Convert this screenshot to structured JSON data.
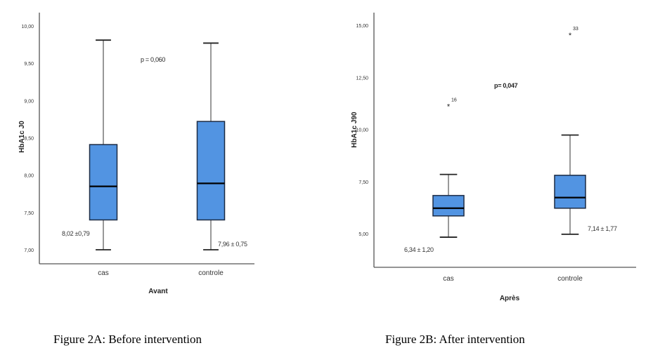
{
  "chart_data": [
    {
      "type": "boxplot",
      "caption": "Figure 2A: Before intervention",
      "xlabel": "Avant",
      "ylabel": "HbA1c J0",
      "ylim": [
        6.8,
        10.2
      ],
      "yticks": [
        "7,00",
        "7,50",
        "8,00",
        "8,50",
        "9,00",
        "9,50",
        "10,00"
      ],
      "ytick_values": [
        7.0,
        7.5,
        8.0,
        8.5,
        9.0,
        9.5,
        10.0
      ],
      "categories": [
        "cas",
        "controle"
      ],
      "box_color": "#5294e2",
      "boxes": [
        {
          "category": "cas",
          "min": 7.0,
          "q1": 7.4,
          "median": 7.85,
          "q3": 8.41,
          "max": 9.81,
          "outliers": [],
          "annotation": "8,02 ±0,79"
        },
        {
          "category": "controle",
          "min": 7.0,
          "q1": 7.4,
          "median": 7.89,
          "q3": 8.72,
          "max": 9.77,
          "outliers": [],
          "annotation": "7,96 ± 0,75"
        }
      ],
      "p_value_label": "p = 0,060",
      "grid": false,
      "legend": "none"
    },
    {
      "type": "boxplot",
      "caption": "Figure 2B: After intervention",
      "xlabel": "Après",
      "ylabel": "HbA1c J90",
      "ylim": [
        3.4,
        15.6
      ],
      "yticks": [
        "5,00",
        "7,50",
        "10,00",
        "12,50",
        "15,00"
      ],
      "ytick_values": [
        5.0,
        7.5,
        10.0,
        12.5,
        15.0
      ],
      "categories": [
        "cas",
        "controle"
      ],
      "box_color": "#5294e2",
      "boxes": [
        {
          "category": "cas",
          "min": 4.83,
          "q1": 5.85,
          "median": 6.22,
          "q3": 6.83,
          "max": 7.84,
          "outliers": [
            {
              "value": 11.14,
              "label": "16"
            }
          ],
          "annotation": "6,34 ± 1,20"
        },
        {
          "category": "controle",
          "min": 4.97,
          "q1": 6.22,
          "median": 6.73,
          "q3": 7.8,
          "max": 9.73,
          "outliers": [
            {
              "value": 14.56,
              "label": "33"
            }
          ],
          "annotation": "7,14 ± 1,77"
        }
      ],
      "p_value_label": "p= 0,047",
      "grid": false,
      "legend": "none"
    }
  ]
}
